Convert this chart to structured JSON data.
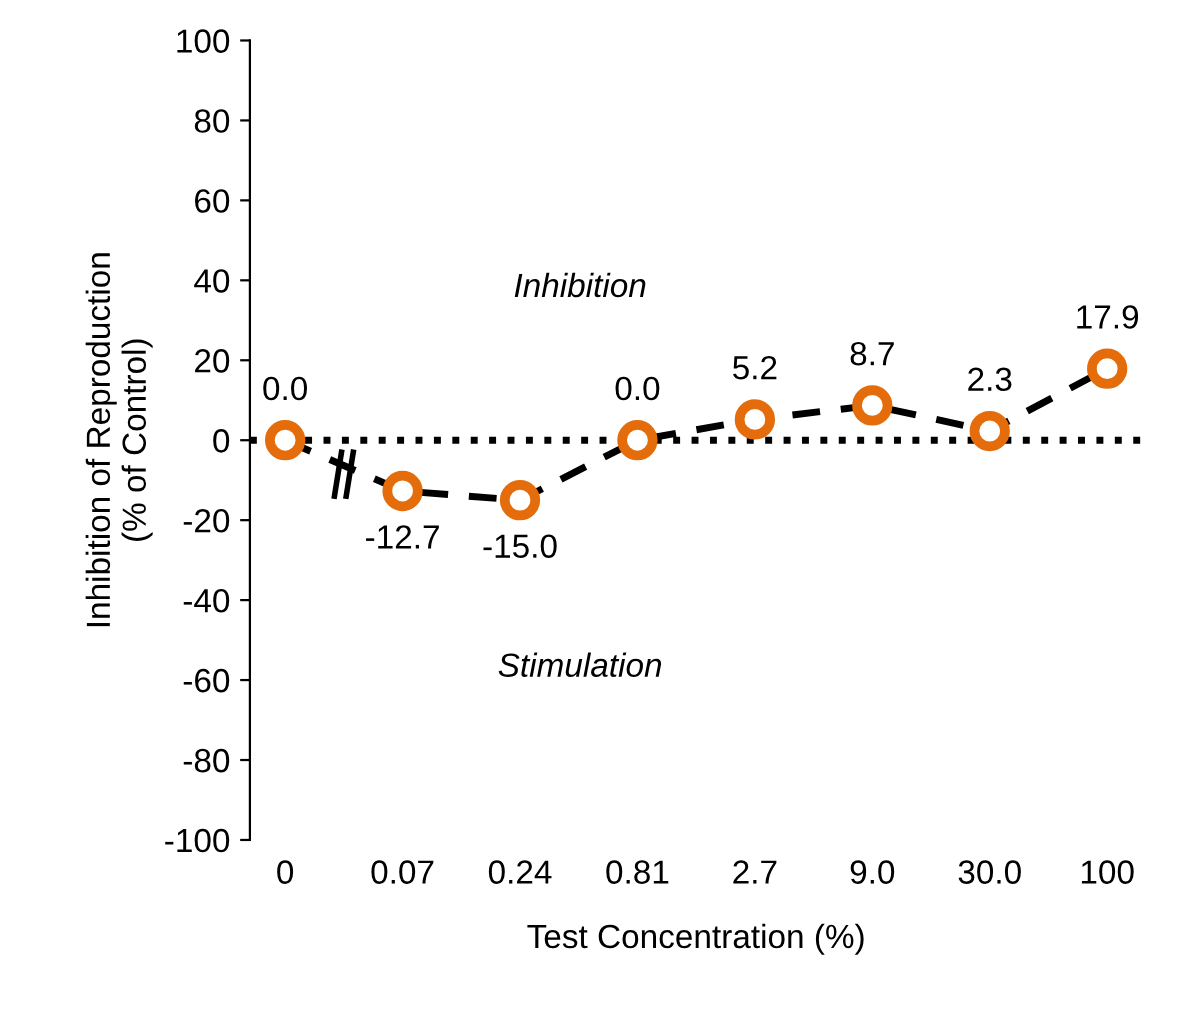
{
  "chart_data": {
    "type": "line",
    "xlabel": "Test Concentration (%)",
    "ylabel": "Inhibition of Reproduction\n(% of Control)",
    "categories": [
      "0",
      "0.07",
      "0.24",
      "0.81",
      "2.7",
      "9.0",
      "30.0",
      "100"
    ],
    "series": [
      {
        "color": "#e46c0a",
        "values": [
          0.0,
          -12.7,
          -15.0,
          0.0,
          5.2,
          8.7,
          2.3,
          17.9
        ],
        "value_labels": [
          "0.0",
          "-12.7",
          "-15.0",
          "0.0",
          "5.2",
          "8.7",
          "2.3",
          "17.9"
        ]
      }
    ],
    "ylim": [
      -100,
      100
    ],
    "yticks": [
      -100,
      -80,
      -60,
      -40,
      -20,
      0,
      20,
      40,
      60,
      80,
      100
    ],
    "ref_lines": [
      {
        "axis": "y",
        "value": 0,
        "color": "#000000",
        "line_style": "dotted"
      }
    ],
    "annotations": [
      "Inhibition",
      "Stimulation"
    ],
    "marker": "circle",
    "line_style": "dashed",
    "grid": false,
    "legend": false
  }
}
